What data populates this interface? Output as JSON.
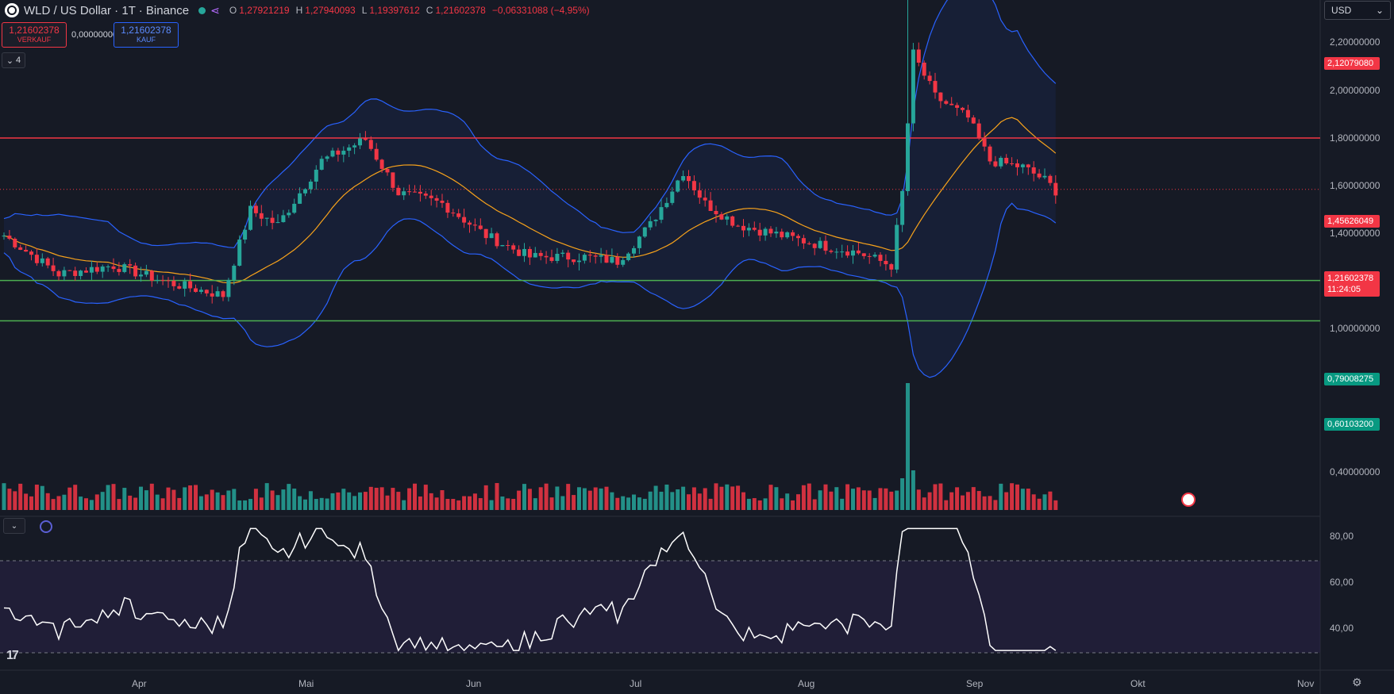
{
  "header": {
    "symbol_title": "WLD / US Dollar · 1T · Binance",
    "open_key": "O",
    "open": "1,27921219",
    "high_key": "H",
    "high": "1,27940093",
    "low_key": "L",
    "low": "1,19397612",
    "close_key": "C",
    "close": "1,21602378",
    "change": "−0,06331088 (−4,95%)"
  },
  "trade": {
    "sell_price": "1,21602378",
    "sell_label": "VERKAUF",
    "spread": "0,00000000",
    "buy_price": "1,21602378",
    "buy_label": "KAUF"
  },
  "indicators_collapsed_count": "4",
  "currency": "USD",
  "price_axis": [
    "2,20000000",
    "2,00000000",
    "1,80000000",
    "1,60000000",
    "1,40000000",
    "1,00000000",
    "0,40000000"
  ],
  "horizontal_levels": [
    {
      "label": "2,12079080",
      "color": "#f23645"
    },
    {
      "label": "1,45626049",
      "color": "#f23645"
    },
    {
      "label": "0,79008275",
      "color": "#4caf50"
    },
    {
      "label": "0,60103200",
      "color": "#4caf50"
    }
  ],
  "last_price": {
    "value": "1,21602378",
    "countdown": "11:24:05"
  },
  "rsi_axis": [
    "80,00",
    "60,00",
    "40,00"
  ],
  "time_axis": [
    "Apr",
    "Mai",
    "Jun",
    "Jul",
    "Aug",
    "Sep",
    "Okt",
    "Nov"
  ],
  "colors": {
    "up": "#26a69a",
    "down": "#f23645",
    "bb": "#2962ff",
    "ma": "#f7a21b",
    "rsi": "#ffffff"
  },
  "icons": [
    "wld-logo-icon",
    "market-open-dot-icon",
    "nodes-icon",
    "chevron-down-icon",
    "indicator-icon",
    "tradingview-logo-icon",
    "gear-icon",
    "event-flag-icon"
  ]
}
